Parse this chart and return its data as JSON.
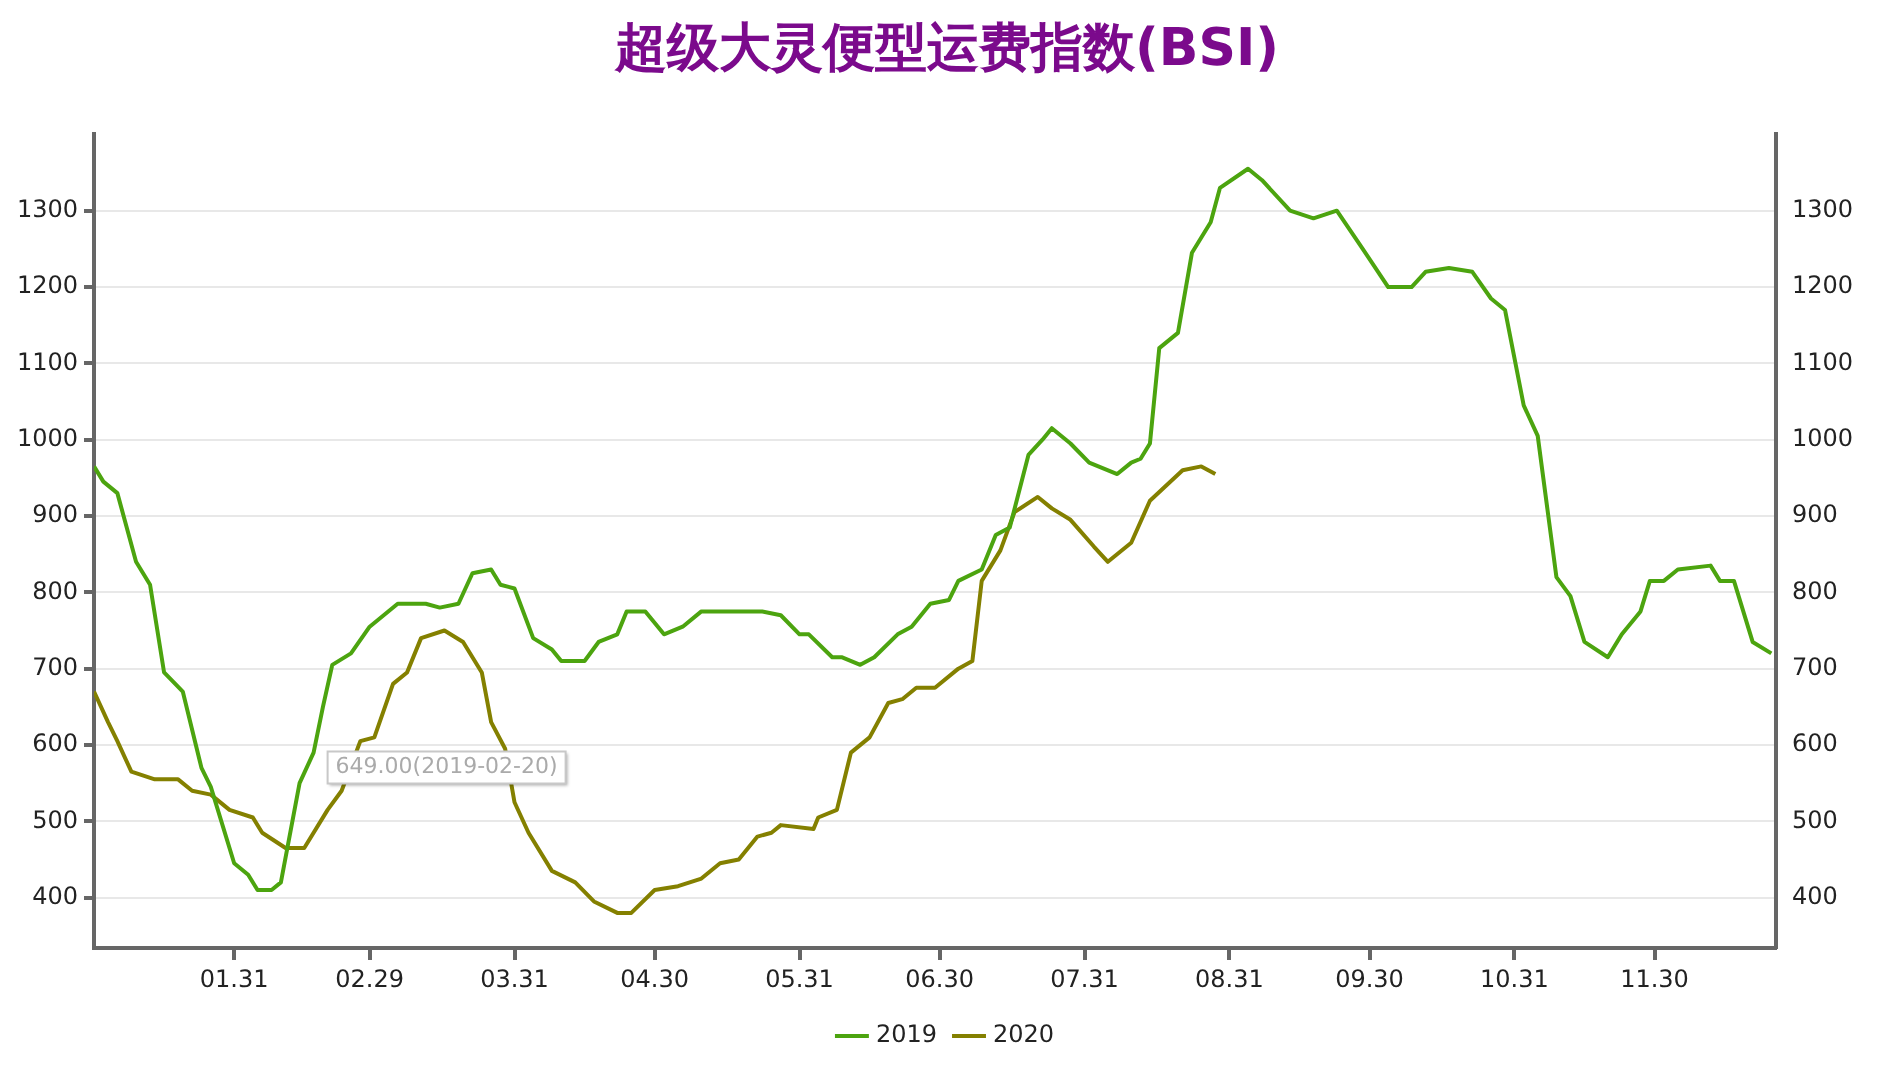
{
  "chart_data": {
    "type": "line",
    "title": "超级大灵便型运费指数(BSI)",
    "xlim": [
      "--01-01",
      "--12-26"
    ],
    "xticks": [
      {
        "value": "--01-31",
        "label": "01.31"
      },
      {
        "value": "--02-29",
        "label": "02.29"
      },
      {
        "value": "--03-31",
        "label": "03.31"
      },
      {
        "value": "--04-30",
        "label": "04.30"
      },
      {
        "value": "--05-31",
        "label": "05.31"
      },
      {
        "value": "--06-30",
        "label": "06.30"
      },
      {
        "value": "--07-31",
        "label": "07.31"
      },
      {
        "value": "--08-31",
        "label": "08.31"
      },
      {
        "value": "--09-30",
        "label": "09.30"
      },
      {
        "value": "--10-31",
        "label": "10.31"
      },
      {
        "value": "--11-30",
        "label": "11.30"
      }
    ],
    "ylim": [
      334,
      1400
    ],
    "yticks": [
      400,
      500,
      600,
      700,
      800,
      900,
      1000,
      1100,
      1200,
      1300
    ],
    "y2lim": [
      334,
      1400
    ],
    "y2ticks": [
      400,
      500,
      600,
      700,
      800,
      900,
      1000,
      1100,
      1200,
      1300
    ],
    "grid": "y",
    "legend": "bottom",
    "marker": "none",
    "line_style": "solid",
    "annotations": [
      {
        "text": "649.00(2019-02-20)",
        "x": "--02-20",
        "y": 649
      }
    ],
    "series": [
      {
        "name": "2019",
        "color": "#4ca40f",
        "x": [
          "--01-01",
          "--01-03",
          "--01-06",
          "--01-10",
          "--01-13",
          "--01-16",
          "--01-20",
          "--01-24",
          "--01-26",
          "--01-31",
          "--02-03",
          "--02-05",
          "--02-08",
          "--02-10",
          "--02-14",
          "--02-17",
          "--02-19",
          "--02-21",
          "--02-25",
          "--02-29",
          "--03-06",
          "--03-12",
          "--03-15",
          "--03-19",
          "--03-22",
          "--03-26",
          "--03-28",
          "--03-31",
          "--04-04",
          "--04-08",
          "--04-10",
          "--04-15",
          "--04-18",
          "--04-22",
          "--04-24",
          "--04-28",
          "--05-02",
          "--05-06",
          "--05-10",
          "--05-14",
          "--05-23",
          "--05-27",
          "--05-31",
          "--06-02",
          "--06-07",
          "--06-09",
          "--06-13",
          "--06-16",
          "--06-21",
          "--06-24",
          "--06-28",
          "--07-02",
          "--07-04",
          "--07-09",
          "--07-12",
          "--07-15",
          "--07-19",
          "--07-22",
          "--07-24",
          "--07-28",
          "--08-01",
          "--08-07",
          "--08-10",
          "--08-12",
          "--08-14",
          "--08-16",
          "--08-20",
          "--08-23",
          "--08-27",
          "--08-29",
          "--09-04",
          "--09-07",
          "--09-13",
          "--09-18",
          "--09-23",
          "--09-28",
          "--10-04",
          "--10-09",
          "--10-12",
          "--10-17",
          "--10-22",
          "--10-26",
          "--10-29",
          "--11-02",
          "--11-05",
          "--11-09",
          "--11-12",
          "--11-15",
          "--11-20",
          "--11-23",
          "--11-27",
          "--11-29",
          "--12-02",
          "--12-05",
          "--12-12",
          "--12-14",
          "--12-17",
          "--12-21",
          "--12-25"
        ],
        "values": [
          965,
          945,
          930,
          840,
          810,
          695,
          670,
          570,
          545,
          445,
          430,
          410,
          410,
          420,
          550,
          590,
          650,
          705,
          720,
          755,
          785,
          785,
          780,
          785,
          825,
          830,
          810,
          805,
          740,
          725,
          710,
          710,
          735,
          745,
          775,
          775,
          745,
          755,
          775,
          775,
          775,
          770,
          745,
          745,
          715,
          715,
          705,
          715,
          745,
          755,
          785,
          790,
          815,
          830,
          875,
          885,
          980,
          1000,
          1015,
          995,
          970,
          955,
          970,
          975,
          995,
          1120,
          1140,
          1245,
          1285,
          1330,
          1355,
          1340,
          1300,
          1290,
          1300,
          1255,
          1200,
          1200,
          1220,
          1225,
          1220,
          1185,
          1170,
          1045,
          1005,
          820,
          795,
          735,
          715,
          745,
          775,
          815,
          815,
          830,
          835,
          815,
          815,
          735,
          720
        ]
      },
      {
        "name": "2020",
        "color": "#848000",
        "x": [
          "--01-01",
          "--01-04",
          "--01-06",
          "--01-09",
          "--01-14",
          "--01-19",
          "--01-22",
          "--01-26",
          "--01-30",
          "--02-04",
          "--02-06",
          "--02-11",
          "--02-15",
          "--02-20",
          "--02-23",
          "--02-27",
          "--03-01",
          "--03-05",
          "--03-08",
          "--03-11",
          "--03-16",
          "--03-20",
          "--03-24",
          "--03-26",
          "--03-29",
          "--03-31",
          "--04-03",
          "--04-08",
          "--04-13",
          "--04-17",
          "--04-22",
          "--04-25",
          "--04-30",
          "--05-05",
          "--05-10",
          "--05-14",
          "--05-18",
          "--05-22",
          "--05-25",
          "--05-27",
          "--06-03",
          "--06-04",
          "--06-08",
          "--06-11",
          "--06-15",
          "--06-19",
          "--06-22",
          "--06-25",
          "--06-29",
          "--07-04",
          "--07-07",
          "--07-09",
          "--07-13",
          "--07-16",
          "--07-21",
          "--07-24",
          "--07-28",
          "--08-02",
          "--08-05",
          "--08-10",
          "--08-14",
          "--08-21",
          "--08-25",
          "--08-28"
        ],
        "values": [
          670,
          630,
          605,
          565,
          555,
          555,
          540,
          535,
          515,
          505,
          485,
          465,
          465,
          515,
          540,
          605,
          610,
          680,
          695,
          740,
          750,
          735,
          695,
          630,
          595,
          525,
          485,
          435,
          420,
          395,
          380,
          380,
          410,
          415,
          425,
          445,
          450,
          480,
          485,
          495,
          490,
          505,
          515,
          590,
          610,
          655,
          660,
          675,
          675,
          700,
          710,
          815,
          855,
          905,
          925,
          910,
          895,
          860,
          840,
          865,
          920,
          960,
          965,
          955
        ]
      }
    ]
  }
}
